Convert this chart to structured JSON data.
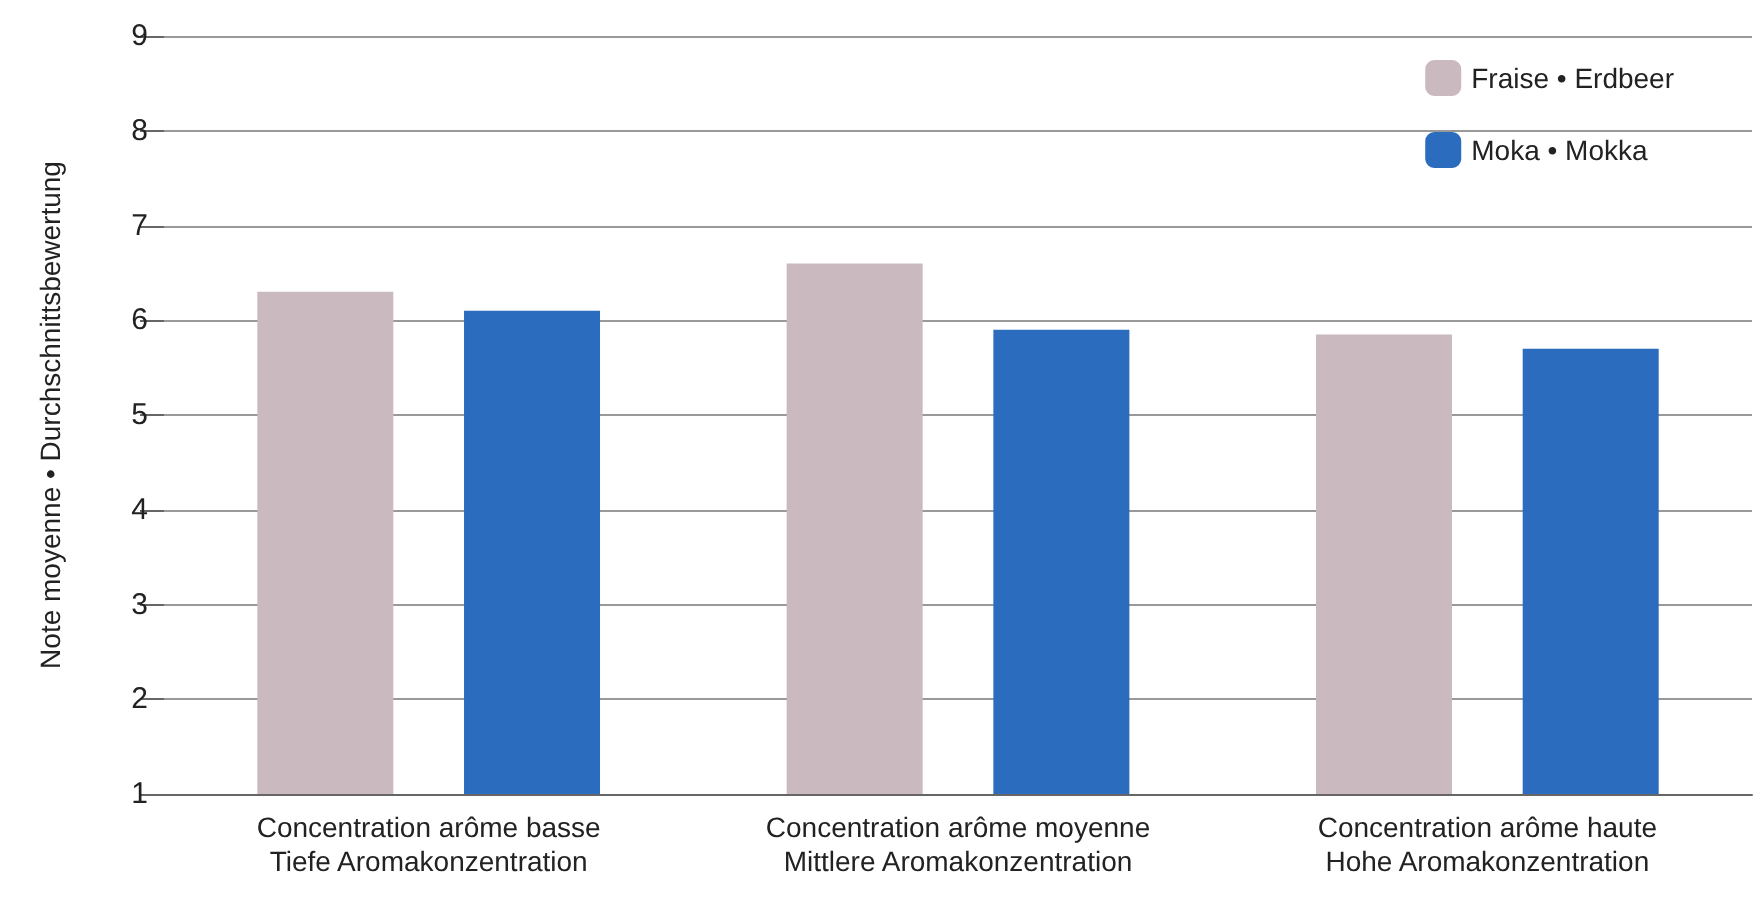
{
  "chart_data": {
    "type": "bar",
    "ylabel": "Note moyenne • Durchschnittsbewertung",
    "categories": [
      "Concentration arôme basse\nTiefe Aromakonzentration",
      "Concentration arôme moyenne\nMittlere Aromakonzentration",
      "Concentration arôme haute\nHohe Aromakonzentration"
    ],
    "series": [
      {
        "name": "Fraise • Erdbeer",
        "color": "#cbb9c0",
        "values": [
          6.3,
          6.6,
          5.85
        ]
      },
      {
        "name": "Moka • Mokka",
        "color": "#2b6cbf",
        "values": [
          6.1,
          5.9,
          5.7
        ]
      }
    ],
    "ylim": [
      1,
      9
    ],
    "yticks": [
      1,
      2,
      3,
      4,
      5,
      6,
      7,
      8,
      9
    ],
    "grid": "y",
    "legend": "top right"
  }
}
